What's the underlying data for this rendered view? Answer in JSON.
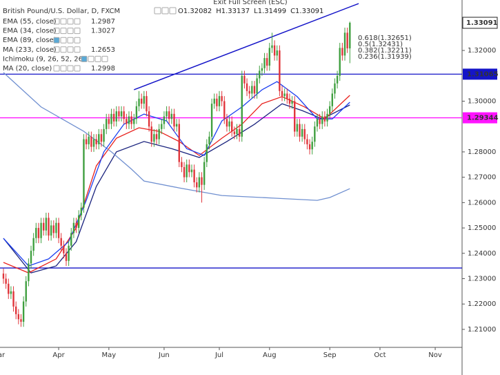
{
  "chart_data": {
    "type": "candlestick",
    "title": "British Pound/U.S. Dollar, D, FXCM",
    "exit_fullscreen": "Exit Full Screen (ESC)",
    "ohlc_prefixes": [
      "O",
      "H",
      "L",
      "C"
    ],
    "up_color": "#3f9f3f",
    "down_color": "#e0343a",
    "open": [
      1.232,
      1.23,
      1.228,
      1.224,
      1.225,
      1.219,
      1.216,
      1.214,
      1.213,
      1.221,
      1.229,
      1.236,
      1.241,
      1.246,
      1.25,
      1.246,
      1.252,
      1.249,
      1.254,
      1.247,
      1.251,
      1.248,
      1.252,
      1.246,
      1.243,
      1.24,
      1.237,
      1.243,
      1.248,
      1.252,
      1.25,
      1.255,
      1.258,
      1.285,
      1.283,
      1.286,
      1.282,
      1.285,
      1.283,
      1.287,
      1.284,
      1.289,
      1.293,
      1.291,
      1.295,
      1.292,
      1.296,
      1.294,
      1.296,
      1.293,
      1.291,
      1.294,
      1.291,
      1.293,
      1.298,
      1.301,
      1.299,
      1.302,
      1.296,
      1.29,
      1.284,
      1.287,
      1.285,
      1.289,
      1.291,
      1.294,
      1.296,
      1.293,
      1.295,
      1.29,
      1.291,
      1.276,
      1.274,
      1.27,
      1.275,
      1.272,
      1.273,
      1.268,
      1.266,
      1.27,
      1.267,
      1.276,
      1.283,
      1.286,
      1.299,
      1.301,
      1.298,
      1.302,
      1.3,
      1.293,
      1.29,
      1.292,
      1.288,
      1.287,
      1.289,
      1.286,
      1.31,
      1.307,
      1.304,
      1.303,
      1.306,
      1.303,
      1.309,
      1.312,
      1.313,
      1.317,
      1.314,
      1.321,
      1.322,
      1.318,
      1.32,
      1.304,
      1.302,
      1.303,
      1.301,
      1.299,
      1.3,
      1.288,
      1.291,
      1.286,
      1.289,
      1.285,
      1.283,
      1.281,
      1.284,
      1.29,
      1.293,
      1.291,
      1.294,
      1.292,
      1.295,
      1.298,
      1.303,
      1.307,
      1.31,
      1.321,
      1.318,
      1.327,
      1.32082
    ],
    "high": [
      1.234,
      1.232,
      1.23,
      1.227,
      1.227,
      1.221,
      1.218,
      1.216,
      1.223,
      1.231,
      1.238,
      1.243,
      1.248,
      1.252,
      1.252,
      1.254,
      1.254,
      1.256,
      1.256,
      1.253,
      1.253,
      1.254,
      1.254,
      1.248,
      1.245,
      1.242,
      1.245,
      1.25,
      1.254,
      1.254,
      1.257,
      1.26,
      1.287,
      1.287,
      1.288,
      1.288,
      1.287,
      1.287,
      1.289,
      1.289,
      1.291,
      1.295,
      1.295,
      1.297,
      1.297,
      1.298,
      1.298,
      1.298,
      1.298,
      1.295,
      1.296,
      1.296,
      1.295,
      1.3,
      1.304,
      1.303,
      1.304,
      1.304,
      1.298,
      1.292,
      1.289,
      1.289,
      1.291,
      1.293,
      1.296,
      1.298,
      1.298,
      1.297,
      1.297,
      1.293,
      1.293,
      1.278,
      1.276,
      1.277,
      1.277,
      1.275,
      1.275,
      1.27,
      1.272,
      1.272,
      1.278,
      1.285,
      1.288,
      1.301,
      1.303,
      1.303,
      1.304,
      1.304,
      1.302,
      1.295,
      1.294,
      1.294,
      1.29,
      1.291,
      1.291,
      1.312,
      1.312,
      1.309,
      1.306,
      1.308,
      1.308,
      1.311,
      1.314,
      1.315,
      1.319,
      1.319,
      1.323,
      1.327,
      1.324,
      1.322,
      1.322,
      1.306,
      1.305,
      1.305,
      1.303,
      1.302,
      1.302,
      1.293,
      1.293,
      1.291,
      1.291,
      1.287,
      1.285,
      1.286,
      1.292,
      1.295,
      1.295,
      1.296,
      1.296,
      1.297,
      1.3,
      1.305,
      1.309,
      1.312,
      1.323,
      1.323,
      1.329,
      1.329,
      1.33137
    ],
    "low": [
      1.228,
      1.226,
      1.222,
      1.222,
      1.217,
      1.214,
      1.212,
      1.211,
      1.211,
      1.219,
      1.227,
      1.234,
      1.239,
      1.244,
      1.244,
      1.244,
      1.247,
      1.247,
      1.245,
      1.245,
      1.246,
      1.246,
      1.244,
      1.241,
      1.238,
      1.235,
      1.235,
      1.241,
      1.246,
      1.248,
      1.248,
      1.253,
      1.256,
      1.281,
      1.281,
      1.28,
      1.28,
      1.281,
      1.281,
      1.282,
      1.282,
      1.287,
      1.289,
      1.289,
      1.29,
      1.29,
      1.292,
      1.292,
      1.291,
      1.289,
      1.289,
      1.289,
      1.289,
      1.291,
      1.296,
      1.297,
      1.297,
      1.294,
      1.288,
      1.282,
      1.282,
      1.283,
      1.283,
      1.287,
      1.289,
      1.292,
      1.291,
      1.291,
      1.288,
      1.288,
      1.274,
      1.272,
      1.268,
      1.268,
      1.27,
      1.27,
      1.266,
      1.264,
      1.264,
      1.26,
      1.265,
      1.274,
      1.281,
      1.284,
      1.297,
      1.296,
      1.296,
      1.298,
      1.291,
      1.288,
      1.288,
      1.286,
      1.285,
      1.285,
      1.284,
      1.284,
      1.305,
      1.302,
      1.301,
      1.301,
      1.301,
      1.301,
      1.307,
      1.31,
      1.311,
      1.312,
      1.312,
      1.319,
      1.316,
      1.316,
      1.302,
      1.3,
      1.3,
      1.299,
      1.297,
      1.297,
      1.286,
      1.286,
      1.284,
      1.284,
      1.283,
      1.281,
      1.279,
      1.279,
      1.282,
      1.288,
      1.289,
      1.289,
      1.29,
      1.29,
      1.293,
      1.296,
      1.301,
      1.305,
      1.308,
      1.316,
      1.316,
      1.319,
      1.31499
    ],
    "close": [
      1.23,
      1.228,
      1.224,
      1.225,
      1.219,
      1.216,
      1.214,
      1.213,
      1.221,
      1.229,
      1.236,
      1.241,
      1.246,
      1.25,
      1.246,
      1.252,
      1.249,
      1.254,
      1.247,
      1.251,
      1.248,
      1.252,
      1.246,
      1.243,
      1.24,
      1.237,
      1.243,
      1.248,
      1.252,
      1.25,
      1.255,
      1.258,
      1.285,
      1.283,
      1.286,
      1.282,
      1.285,
      1.283,
      1.287,
      1.284,
      1.289,
      1.293,
      1.291,
      1.295,
      1.292,
      1.296,
      1.294,
      1.296,
      1.293,
      1.291,
      1.294,
      1.291,
      1.293,
      1.298,
      1.301,
      1.299,
      1.302,
      1.296,
      1.29,
      1.284,
      1.287,
      1.285,
      1.289,
      1.291,
      1.294,
      1.296,
      1.293,
      1.295,
      1.29,
      1.291,
      1.276,
      1.274,
      1.27,
      1.275,
      1.272,
      1.273,
      1.268,
      1.266,
      1.27,
      1.267,
      1.276,
      1.283,
      1.286,
      1.299,
      1.301,
      1.298,
      1.302,
      1.3,
      1.293,
      1.29,
      1.292,
      1.288,
      1.287,
      1.289,
      1.286,
      1.31,
      1.307,
      1.304,
      1.303,
      1.306,
      1.303,
      1.309,
      1.312,
      1.313,
      1.317,
      1.314,
      1.321,
      1.322,
      1.318,
      1.32,
      1.304,
      1.302,
      1.303,
      1.301,
      1.299,
      1.3,
      1.288,
      1.291,
      1.286,
      1.289,
      1.285,
      1.283,
      1.281,
      1.284,
      1.29,
      1.293,
      1.291,
      1.294,
      1.292,
      1.295,
      1.298,
      1.303,
      1.307,
      1.31,
      1.321,
      1.318,
      1.327,
      1.32082,
      1.33091
    ],
    "series": [
      {
        "name": "EMA (55, close)",
        "last_value": 1.2987,
        "color": "#1a237e",
        "x": [
          0,
          11,
          21,
          29,
          37,
          45,
          56,
          67,
          78,
          89,
          100,
          111,
          119,
          127,
          138
        ],
        "values": [
          1.2459,
          1.2323,
          1.235,
          1.2446,
          1.2664,
          1.28,
          1.2841,
          1.2813,
          1.2778,
          1.2841,
          1.2909,
          1.299,
          1.2963,
          1.293,
          1.2985
        ]
      },
      {
        "name": "EMA (34, close)",
        "last_value": 1.3027,
        "color": "#e8201c",
        "x": [
          0,
          10,
          21,
          29,
          37,
          45,
          54,
          62,
          70,
          78,
          87,
          95,
          103,
          111,
          120,
          128,
          138
        ],
        "values": [
          1.2364,
          1.2323,
          1.2378,
          1.25,
          1.2745,
          1.2854,
          1.2895,
          1.2881,
          1.2841,
          1.2786,
          1.2854,
          1.2909,
          1.299,
          1.3018,
          1.2977,
          1.293,
          1.3023
        ]
      },
      {
        "name": "EMA (89, close)",
        "hidden": true
      },
      {
        "name": "MA (233, close)",
        "last_value": 1.2653,
        "color": "#6f8fd0",
        "x": [
          0,
          15,
          32,
          43,
          51,
          56,
          70,
          87,
          109,
          125,
          130,
          138
        ],
        "values": [
          1.3113,
          1.2977,
          1.2881,
          1.28,
          1.2732,
          1.2685,
          1.2658,
          1.2628,
          1.2617,
          1.2609,
          1.262,
          1.2655
        ]
      },
      {
        "name": "Ichimoku (9, 26, 52, 26)",
        "hidden": true
      },
      {
        "name": "MA (20, close)",
        "last_value": 1.2998,
        "color": "#1c3ff0",
        "x": [
          0,
          10,
          18,
          26,
          33,
          40,
          48,
          56,
          65,
          73,
          80,
          87,
          95,
          103,
          109,
          117,
          125,
          131,
          138
        ],
        "values": [
          1.2459,
          1.235,
          1.2378,
          1.2446,
          1.2609,
          1.28,
          1.2909,
          1.2949,
          1.2922,
          1.2813,
          1.2786,
          1.2922,
          1.2977,
          1.3045,
          1.3077,
          1.3018,
          1.293,
          1.293,
          1.2996
        ]
      }
    ],
    "hlines": [
      {
        "value": 1.31065,
        "color": "#1414c8",
        "show_label": true
      },
      {
        "value": 1.29344,
        "color": "#ff14ff",
        "show_label": true
      },
      {
        "value": 1.2342,
        "color": "#1414c8",
        "show_label": false
      }
    ],
    "trend_line": {
      "x": [
        52,
        141.5
      ],
      "values": [
        1.3045,
        1.3385
      ],
      "color": "#1414c8"
    },
    "fib_labels": [
      "0.618(1.32651)",
      "0.5(1.32431)",
      "0.382(1.32211)",
      "0.236(1.31939)"
    ],
    "xlim": [
      -1.37,
      182.7
    ],
    "xticks": [
      {
        "value": -2,
        "label": "Mar"
      },
      {
        "value": 22,
        "label": "Apr"
      },
      {
        "value": 42,
        "label": "May"
      },
      {
        "value": 64,
        "label": "Jun"
      },
      {
        "value": 86,
        "label": "Jul"
      },
      {
        "value": 106,
        "label": "Aug"
      },
      {
        "value": 130,
        "label": "Sep"
      },
      {
        "value": 150,
        "label": "Oct"
      },
      {
        "value": 172,
        "label": "Nov"
      }
    ],
    "ylim": [
      1.2029,
      1.3399
    ],
    "yticks": [
      {
        "value": 1.21,
        "label": "1.21000"
      },
      {
        "value": 1.22,
        "label": "1.22000"
      },
      {
        "value": 1.23,
        "label": "1.23000"
      },
      {
        "value": 1.24,
        "label": "1.24000"
      },
      {
        "value": 1.25,
        "label": "1.25000"
      },
      {
        "value": 1.26,
        "label": "1.26000"
      },
      {
        "value": 1.27,
        "label": "1.27000"
      },
      {
        "value": 1.28,
        "label": "1.28000"
      },
      {
        "value": 1.3,
        "label": "1.30000"
      },
      {
        "value": 1.32,
        "label": "1.32000"
      }
    ],
    "grid": false
  }
}
